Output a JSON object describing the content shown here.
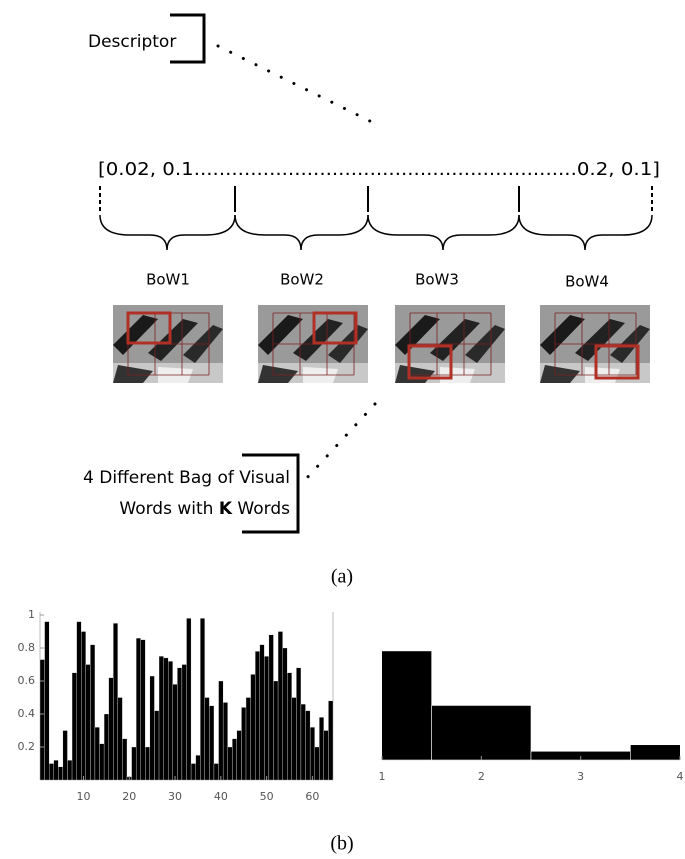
{
  "diagram": {
    "descriptor": "Descriptor",
    "vector": "[0.02, 0.1.............................................................0.2, 0.1]",
    "bow_labels": [
      "BoW1",
      "BoW2",
      "BoW3",
      "BoW4"
    ],
    "note_line1": "4 Different Bag of Visual",
    "note_line2": [
      "Words with ",
      "K",
      " Words"
    ],
    "caption_a": "(a)",
    "caption_b": "(b)"
  },
  "chart_data": [
    {
      "type": "bar",
      "categories": [
        1,
        2,
        3,
        4,
        5,
        6,
        7,
        8,
        9,
        10,
        11,
        12,
        13,
        14,
        15,
        16,
        17,
        18,
        19,
        20,
        21,
        22,
        23,
        24,
        25,
        26,
        27,
        28,
        29,
        30,
        31,
        32,
        33,
        34,
        35,
        36,
        37,
        38,
        39,
        40,
        41,
        42,
        43,
        44,
        45,
        46,
        47,
        48,
        49,
        50,
        51,
        52,
        53,
        54,
        55,
        56,
        57,
        58,
        59,
        60,
        61,
        62,
        63,
        64
      ],
      "values": [
        0.73,
        0.96,
        0.1,
        0.12,
        0.08,
        0.3,
        0.12,
        0.65,
        0.96,
        0.9,
        0.7,
        0.82,
        0.32,
        0.22,
        0.4,
        0.62,
        0.95,
        0.5,
        0.25,
        0.02,
        0.2,
        0.86,
        0.85,
        0.2,
        0.63,
        0.42,
        0.75,
        0.74,
        0.72,
        0.58,
        0.68,
        0.7,
        0.98,
        0.1,
        0.15,
        0.98,
        0.5,
        0.45,
        0.1,
        0.6,
        0.47,
        0.2,
        0.25,
        0.3,
        0.44,
        0.5,
        0.64,
        0.78,
        0.82,
        0.75,
        0.88,
        0.6,
        0.9,
        0.8,
        0.65,
        0.5,
        0.68,
        0.46,
        0.42,
        0.32,
        0.2,
        0.38,
        0.3,
        0.48
      ],
      "color": "#000000",
      "xlim": [
        0.5,
        64.5
      ],
      "xticks": [
        10,
        20,
        30,
        40,
        50,
        60
      ],
      "ylim": [
        0,
        1
      ],
      "yticks": [
        0.2,
        0.4,
        0.6,
        0.8,
        1
      ]
    },
    {
      "type": "bar",
      "categories": [
        1,
        2,
        3,
        4
      ],
      "values": [
        0.5,
        0.25,
        0.04,
        0.07
      ],
      "color": "#000000",
      "xlim": [
        1,
        4
      ],
      "xticks": [
        1,
        2,
        3,
        4
      ],
      "ylim": [
        0,
        0.55
      ]
    }
  ]
}
